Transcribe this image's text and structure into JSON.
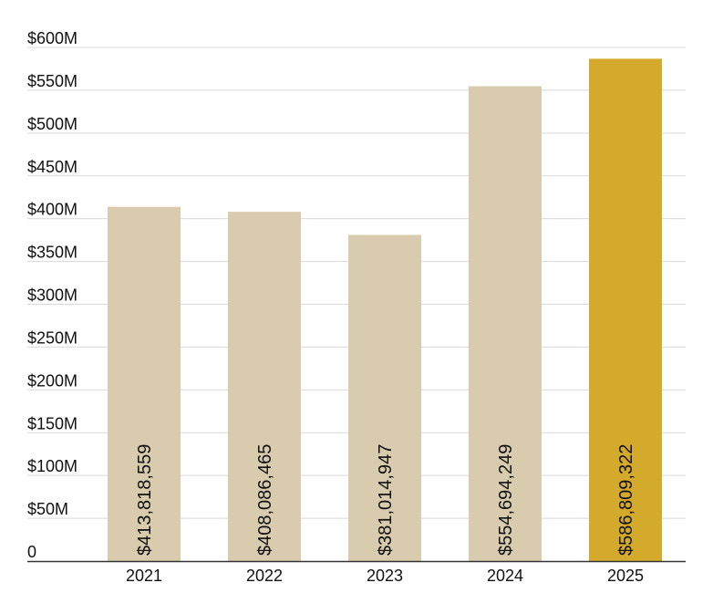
{
  "chart_data": {
    "type": "bar",
    "categories": [
      "2021",
      "2022",
      "2023",
      "2024",
      "2025"
    ],
    "values": [
      413818559,
      408086465,
      381014947,
      554694249,
      586809322
    ],
    "data_labels": [
      "$413,818,559",
      "$408,086,465",
      "$381,014,947",
      "$554,694,249",
      "$586,809,322"
    ],
    "ylim": [
      0,
      600000000
    ],
    "y_ticks": [
      0,
      50000000,
      100000000,
      150000000,
      200000000,
      250000000,
      300000000,
      350000000,
      400000000,
      450000000,
      500000000,
      550000000,
      600000000
    ],
    "y_tick_labels": [
      "0",
      "$50M",
      "$100M",
      "$150M",
      "$200M",
      "$250M",
      "$300M",
      "$350M",
      "$400M",
      "$450M",
      "$500M",
      "$550M",
      "$600M"
    ],
    "grid": true,
    "legend": "none",
    "bar_colors": [
      "#d9cbad",
      "#d9cbad",
      "#d9cbad",
      "#d9cbad",
      "#d4aa2c"
    ]
  }
}
